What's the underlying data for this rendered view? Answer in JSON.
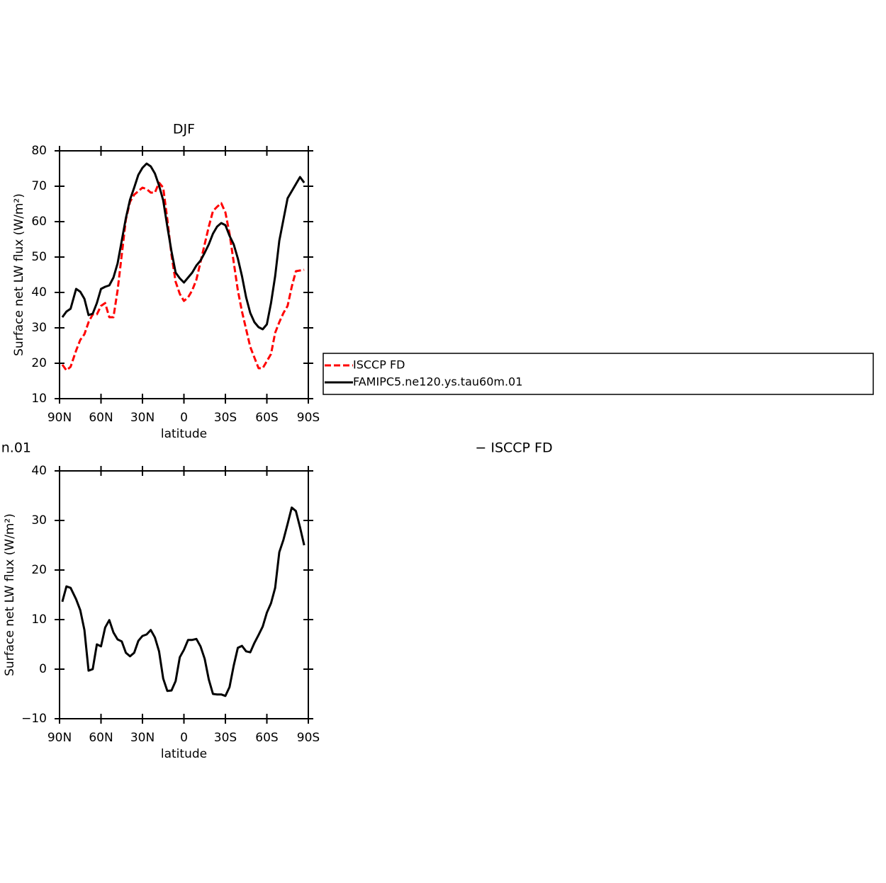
{
  "chart_data": [
    {
      "type": "line",
      "title": "DJF",
      "xlabel": "latitude",
      "ylabel": "Surface net LW flux (W/m²)",
      "x": [
        88,
        85,
        82,
        78,
        75,
        72,
        69,
        66,
        63,
        60,
        57,
        54,
        51,
        48,
        45,
        42,
        39,
        36,
        33,
        30,
        27,
        24,
        21,
        18,
        15,
        12,
        9,
        6,
        3,
        0,
        -3,
        -6,
        -9,
        -12,
        -15,
        -18,
        -21,
        -24,
        -27,
        -30,
        -33,
        -36,
        -39,
        -42,
        -45,
        -48,
        -51,
        -54,
        -57,
        -60,
        -63,
        -66,
        -69,
        -72,
        -75,
        -78,
        -81,
        -84,
        -87
      ],
      "series": [
        {
          "name": "ISCCP FD",
          "color": "#ff0000",
          "dashed": true,
          "values": [
            19.6,
            18,
            19,
            23.6,
            26.6,
            28.2,
            31.6,
            33.8,
            33.8,
            36.2,
            37,
            33,
            33,
            40.6,
            50.6,
            60.6,
            65.6,
            67.6,
            68.6,
            69.6,
            69.2,
            68.2,
            68.2,
            71,
            69.6,
            60.6,
            50.6,
            43,
            39.6,
            37.6,
            38.6,
            40.6,
            43.6,
            48.6,
            53.6,
            58.6,
            63,
            64.2,
            65.2,
            62.6,
            56.6,
            48.6,
            40.6,
            34.6,
            29.6,
            24.6,
            21.6,
            18.6,
            18.6,
            20.6,
            22.6,
            28.6,
            31.6,
            34.2,
            36.2,
            41.6,
            46,
            46.2,
            46.4
          ]
        },
        {
          "name": "FAMIPC5.ne120.ys.tau60m.01",
          "color": "#000000",
          "dashed": false,
          "values": [
            33,
            34.6,
            35.4,
            41,
            40.2,
            38.2,
            33.6,
            34,
            37,
            41,
            41.6,
            42,
            44.2,
            48.2,
            54.6,
            61,
            66.2,
            69.6,
            73.2,
            75.2,
            76.4,
            75.6,
            73.6,
            70.2,
            66,
            58.6,
            51.6,
            45.6,
            44,
            42.8,
            44.2,
            45.6,
            47.6,
            49,
            51.2,
            53.6,
            56.6,
            58.6,
            59.6,
            59,
            56,
            53.6,
            49.6,
            44.6,
            38.6,
            34.2,
            31.6,
            30.2,
            29.6,
            31,
            37,
            44.6,
            54.6,
            60.6,
            66.6,
            68.6,
            70.6,
            72.6,
            71
          ]
        }
      ],
      "xlim": [
        90,
        -90
      ],
      "xticks": [
        {
          "value": 90,
          "label": "90N"
        },
        {
          "value": 60,
          "label": "60N"
        },
        {
          "value": 30,
          "label": "30N"
        },
        0,
        {
          "value": -30,
          "label": "30S"
        },
        {
          "value": -60,
          "label": "60S"
        },
        {
          "value": -90,
          "label": "90S"
        }
      ],
      "ylim": [
        10,
        80
      ],
      "yticks": [
        10,
        20,
        30,
        40,
        50,
        60,
        70,
        80
      ],
      "legend": "right"
    },
    {
      "type": "line",
      "title_parts": [
        "n.01",
        "− ISCCP FD"
      ],
      "xlabel": "latitude",
      "ylabel": "Surface net LW flux (W/m²)",
      "x": [
        88,
        85,
        82,
        78,
        75,
        72,
        69,
        66,
        63,
        60,
        57,
        54,
        51,
        48,
        45,
        42,
        39,
        36,
        33,
        30,
        27,
        24,
        21,
        18,
        15,
        12,
        9,
        6,
        3,
        0,
        -3,
        -6,
        -9,
        -12,
        -15,
        -18,
        -21,
        -24,
        -27,
        -30,
        -33,
        -36,
        -39,
        -42,
        -45,
        -48,
        -51,
        -54,
        -57,
        -60,
        -63,
        -66,
        -69,
        -72,
        -75,
        -78,
        -81,
        -84,
        -87
      ],
      "series": [
        {
          "color": "#000000",
          "dashed": false,
          "values": [
            13.6,
            16.7,
            16.4,
            14.1,
            11.9,
            7.9,
            -0.3,
            0,
            5,
            4.6,
            8.4,
            9.9,
            7.4,
            6,
            5.6,
            3.3,
            2.6,
            3.3,
            5.7,
            6.7,
            7,
            7.9,
            6.4,
            3.6,
            -1.9,
            -4.4,
            -4.3,
            -2.4,
            2.4,
            3.9,
            5.9,
            5.9,
            6.1,
            4.6,
            2.1,
            -2.1,
            -5,
            -5.1,
            -5.1,
            -5.4,
            -3.6,
            0.7,
            4.3,
            4.7,
            3.6,
            3.4,
            5.3,
            6.9,
            8.6,
            11.4,
            13.3,
            16.4,
            23.6,
            26.1,
            29.3,
            32.6,
            31.9,
            28.6,
            25
          ]
        }
      ],
      "xlim": [
        90,
        -90
      ],
      "xticks": [
        {
          "value": 90,
          "label": "90N"
        },
        {
          "value": 60,
          "label": "60N"
        },
        {
          "value": 30,
          "label": "30N"
        },
        0,
        {
          "value": -30,
          "label": "30S"
        },
        {
          "value": -60,
          "label": "60S"
        },
        {
          "value": -90,
          "label": "90S"
        }
      ],
      "ylim": [
        -10,
        40
      ],
      "yticks": [
        {
          "value": -10,
          "label": "−10"
        },
        0,
        10,
        20,
        30,
        40
      ]
    }
  ]
}
